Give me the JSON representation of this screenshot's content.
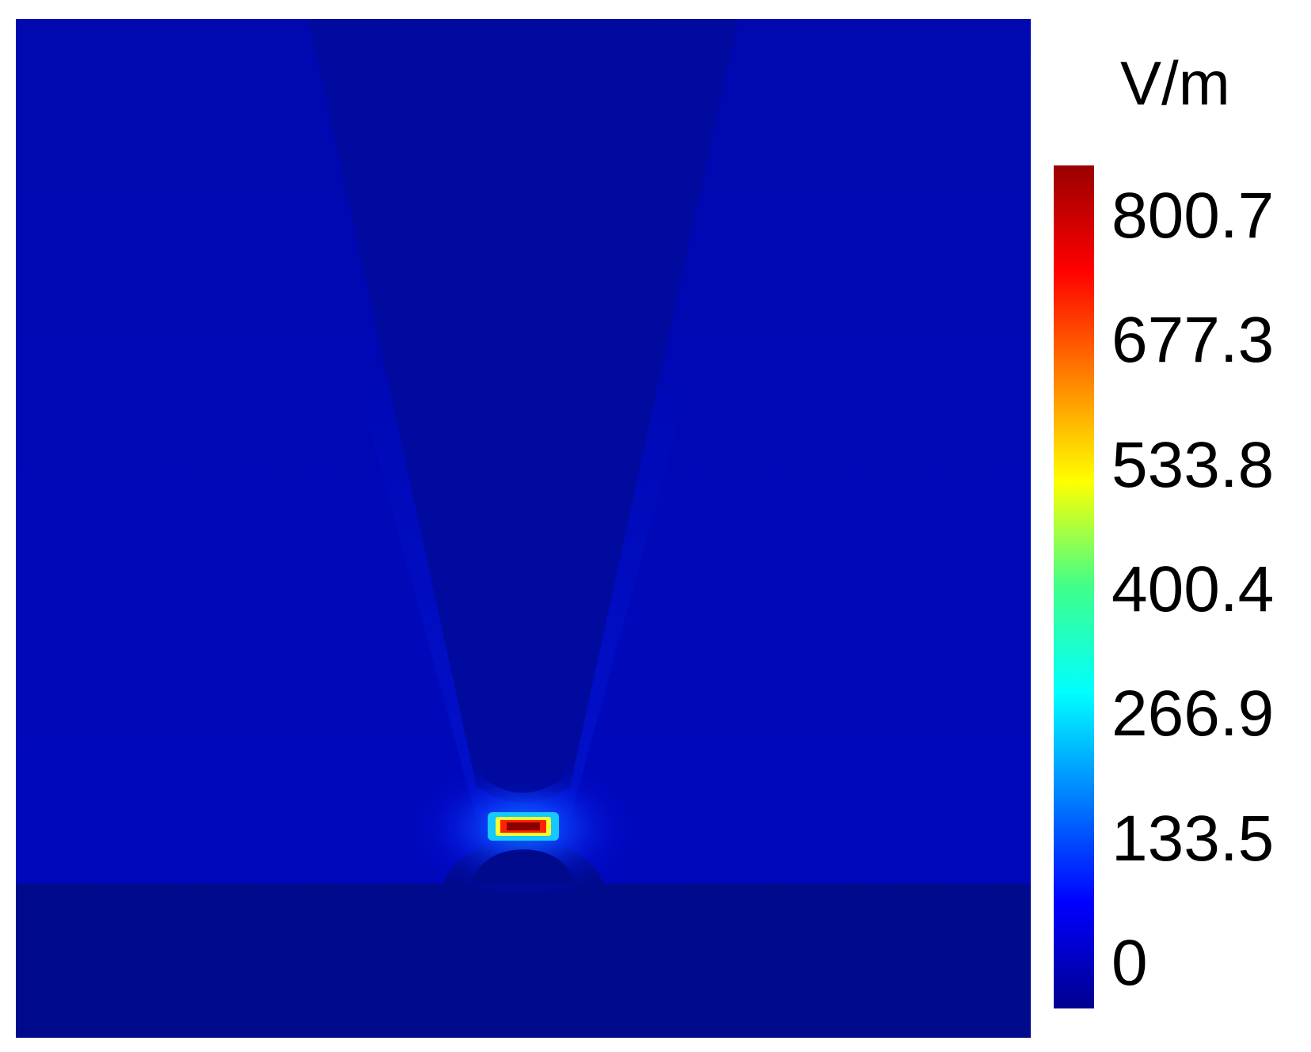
{
  "chart_data": {
    "type": "heatmap",
    "title": "",
    "colorbar": {
      "unit": "V/m",
      "min": 0,
      "max": 800.7,
      "ticks": [
        "800.7",
        "677.3",
        "533.8",
        "400.4",
        "266.9",
        "133.5",
        "0"
      ],
      "tick_values": [
        800.7,
        677.3,
        533.8,
        400.4,
        266.9,
        133.5,
        0
      ],
      "colormap": "jet",
      "colors": [
        "#00008f",
        "#0000ff",
        "#00ffff",
        "#ffff00",
        "#ff0000",
        "#800000"
      ]
    },
    "field": {
      "background_level": 45,
      "tip_level": 15,
      "substrate_level": 10,
      "peak_level": 800.7,
      "peak_location": "gap between tip and substrate"
    }
  }
}
